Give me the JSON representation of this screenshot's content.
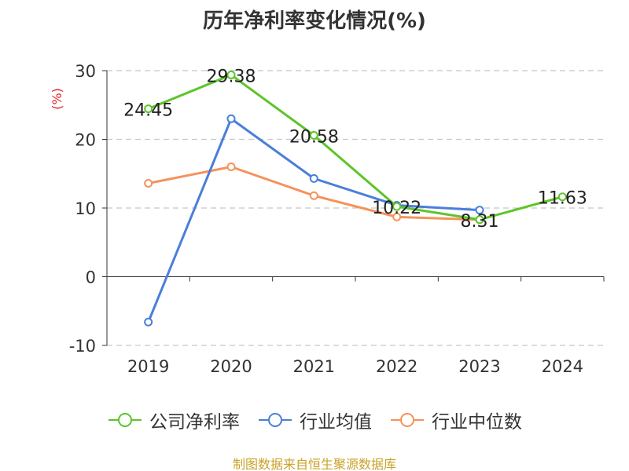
{
  "chart_data": {
    "type": "line",
    "title": "历年净利率变化情况(%)",
    "ylabel": "(%)",
    "xlabel": "",
    "categories": [
      "2019",
      "2020",
      "2021",
      "2022",
      "2023",
      "2024"
    ],
    "ylim": [
      -10,
      30
    ],
    "yticks": [
      30,
      20,
      10,
      0,
      -10
    ],
    "grid": true,
    "legend_position": "bottom",
    "series": [
      {
        "name": "公司净利率",
        "color": "#5cc52a",
        "values": [
          24.45,
          29.38,
          20.58,
          10.22,
          8.31,
          11.63
        ],
        "labels": [
          "24.45",
          "29.38",
          "20.58",
          "10.22",
          "8.31",
          "11.63"
        ]
      },
      {
        "name": "行业均值",
        "color": "#4a7fd9",
        "values": [
          -6.6,
          23.0,
          14.3,
          10.4,
          9.7,
          null
        ]
      },
      {
        "name": "行业中位数",
        "color": "#f5925a",
        "values": [
          13.6,
          16.0,
          11.8,
          8.7,
          8.3,
          null
        ]
      }
    ]
  },
  "source": "制图数据来自恒生聚源数据库"
}
